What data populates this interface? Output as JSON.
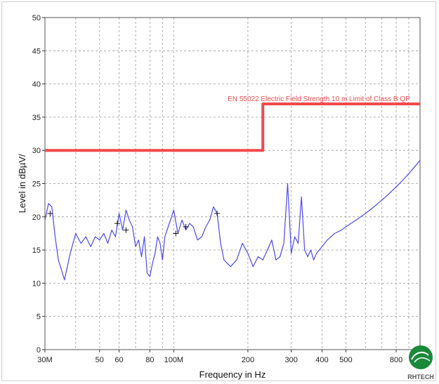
{
  "chart_data": {
    "type": "line",
    "title": "",
    "xlabel": "Frequency in Hz",
    "ylabel": "Level in dBµV/",
    "x_scale": "log",
    "xlim": [
      30000000,
      1000000000
    ],
    "ylim": [
      0,
      50
    ],
    "y_ticks": [
      0,
      5,
      10,
      15,
      20,
      25,
      30,
      35,
      40,
      45,
      50
    ],
    "x_ticks": [
      {
        "value": 30000000,
        "label": "30M"
      },
      {
        "value": 50000000,
        "label": "50"
      },
      {
        "value": 60000000,
        "label": "60"
      },
      {
        "value": 80000000,
        "label": "80"
      },
      {
        "value": 100000000,
        "label": "100M"
      },
      {
        "value": 200000000,
        "label": "200"
      },
      {
        "value": 300000000,
        "label": "300"
      },
      {
        "value": 400000000,
        "label": "400"
      },
      {
        "value": 500000000,
        "label": "500"
      },
      {
        "value": 800000000,
        "label": "800"
      }
    ],
    "grid": true,
    "series": [
      {
        "color": "#4a4af0",
        "x": [
          30000000,
          31000000,
          32000000,
          33000000,
          34000000,
          35000000,
          36000000,
          37000000,
          38000000,
          40000000,
          42000000,
          44000000,
          46000000,
          48000000,
          50000000,
          52000000,
          54000000,
          56000000,
          58000000,
          60000000,
          62000000,
          64000000,
          66000000,
          68000000,
          70000000,
          72000000,
          74000000,
          76000000,
          78000000,
          80000000,
          82000000,
          84000000,
          86000000,
          88000000,
          90000000,
          92000000,
          95000000,
          98000000,
          100000000,
          104000000,
          108000000,
          112000000,
          116000000,
          120000000,
          125000000,
          130000000,
          135000000,
          140000000,
          145000000,
          150000000,
          155000000,
          160000000,
          170000000,
          180000000,
          190000000,
          200000000,
          210000000,
          220000000,
          230000000,
          240000000,
          250000000,
          260000000,
          270000000,
          280000000,
          290000000,
          300000000,
          310000000,
          320000000,
          330000000,
          340000000,
          350000000,
          360000000,
          370000000,
          380000000,
          400000000,
          420000000,
          450000000,
          480000000,
          500000000,
          550000000,
          600000000,
          650000000,
          700000000,
          750000000,
          800000000,
          850000000,
          900000000,
          950000000,
          1000000000
        ],
        "values": [
          19.5,
          22.0,
          21.5,
          17.0,
          13.5,
          12.0,
          10.5,
          12.5,
          14.5,
          17.5,
          16.0,
          17.0,
          15.5,
          17.0,
          16.5,
          17.5,
          16.0,
          18.0,
          17.0,
          20.5,
          18.0,
          21.0,
          19.5,
          18.5,
          15.5,
          16.5,
          14.0,
          17.0,
          11.5,
          11.0,
          13.0,
          14.5,
          17.0,
          16.0,
          13.5,
          17.0,
          18.5,
          20.0,
          21.0,
          17.5,
          19.5,
          18.0,
          19.0,
          18.5,
          16.5,
          17.0,
          18.5,
          19.5,
          21.5,
          20.5,
          16.0,
          13.5,
          12.5,
          13.5,
          16.0,
          14.5,
          12.5,
          14.0,
          13.5,
          15.0,
          16.5,
          13.5,
          14.0,
          16.0,
          25.0,
          14.5,
          17.0,
          16.0,
          23.0,
          15.0,
          14.0,
          15.0,
          13.5,
          14.5,
          15.5,
          16.5,
          17.5,
          18.0,
          18.5,
          19.5,
          20.5,
          21.5,
          22.5,
          23.5,
          24.5,
          25.5,
          26.5,
          27.5,
          28.5
        ]
      },
      {
        "name": "EN 55022 Electric Field Strength 10 m Limit of Class B QP",
        "color": "#f24a4a",
        "x": [
          30000000,
          230000000,
          230000000,
          1000000000
        ],
        "values": [
          30,
          30,
          37,
          37
        ]
      }
    ],
    "markers": [
      {
        "x": 31500000,
        "y": 20.5
      },
      {
        "x": 59000000,
        "y": 19.0
      },
      {
        "x": 64000000,
        "y": 18.0
      },
      {
        "x": 102000000,
        "y": 17.5
      },
      {
        "x": 112000000,
        "y": 18.5
      },
      {
        "x": 150000000,
        "y": 20.5
      }
    ],
    "annotations": [
      "EN 55022 Electric Field Strength 10 m Limit of Class B QP"
    ]
  },
  "logo": {
    "text": "RHTECH",
    "color": "#1a8a3a"
  }
}
